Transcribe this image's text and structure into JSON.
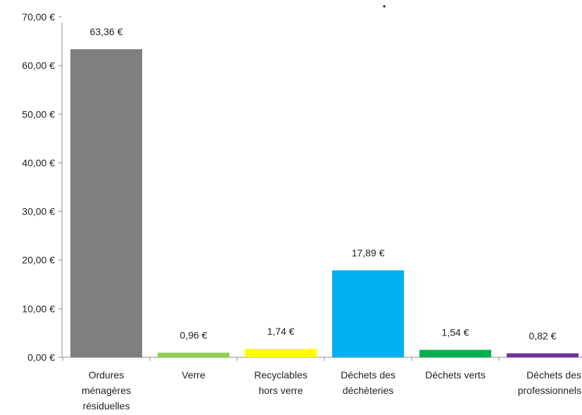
{
  "chart_data": {
    "type": "bar",
    "title": "",
    "xlabel": "",
    "ylabel": "",
    "ylim": [
      0,
      70
    ],
    "y_ticks": [
      0,
      10,
      20,
      30,
      40,
      50,
      60,
      70
    ],
    "y_tick_labels": [
      "0,00 €",
      "10,00 €",
      "20,00 €",
      "30,00 €",
      "40,00 €",
      "50,00 €",
      "60,00 €",
      "70,00 €"
    ],
    "grid": false,
    "legend": "none",
    "categories": [
      "Ordures ménagères résiduelles",
      "Verre",
      "Recyclables hors verre",
      "Déchets des déchèteries",
      "Déchets verts",
      "Déchets des professionnels"
    ],
    "category_label_lines": [
      [
        "Ordures",
        "ménagères",
        "résiduelles"
      ],
      [
        "Verre"
      ],
      [
        "Recyclables",
        "hors verre"
      ],
      [
        "Déchets des",
        "déchèteries"
      ],
      [
        "Déchets verts"
      ],
      [
        "Déchets des",
        "professionnels"
      ]
    ],
    "values": [
      63.36,
      0.96,
      1.74,
      17.89,
      1.54,
      0.82
    ],
    "value_labels": [
      "63,36 €",
      "0,96 €",
      "1,74 €",
      "17,89 €",
      "1,54 €",
      "0,82 €"
    ],
    "colors": [
      "#7f7f7f",
      "#92d050",
      "#ffff00",
      "#00b0f0",
      "#00b050",
      "#7030a0"
    ]
  }
}
